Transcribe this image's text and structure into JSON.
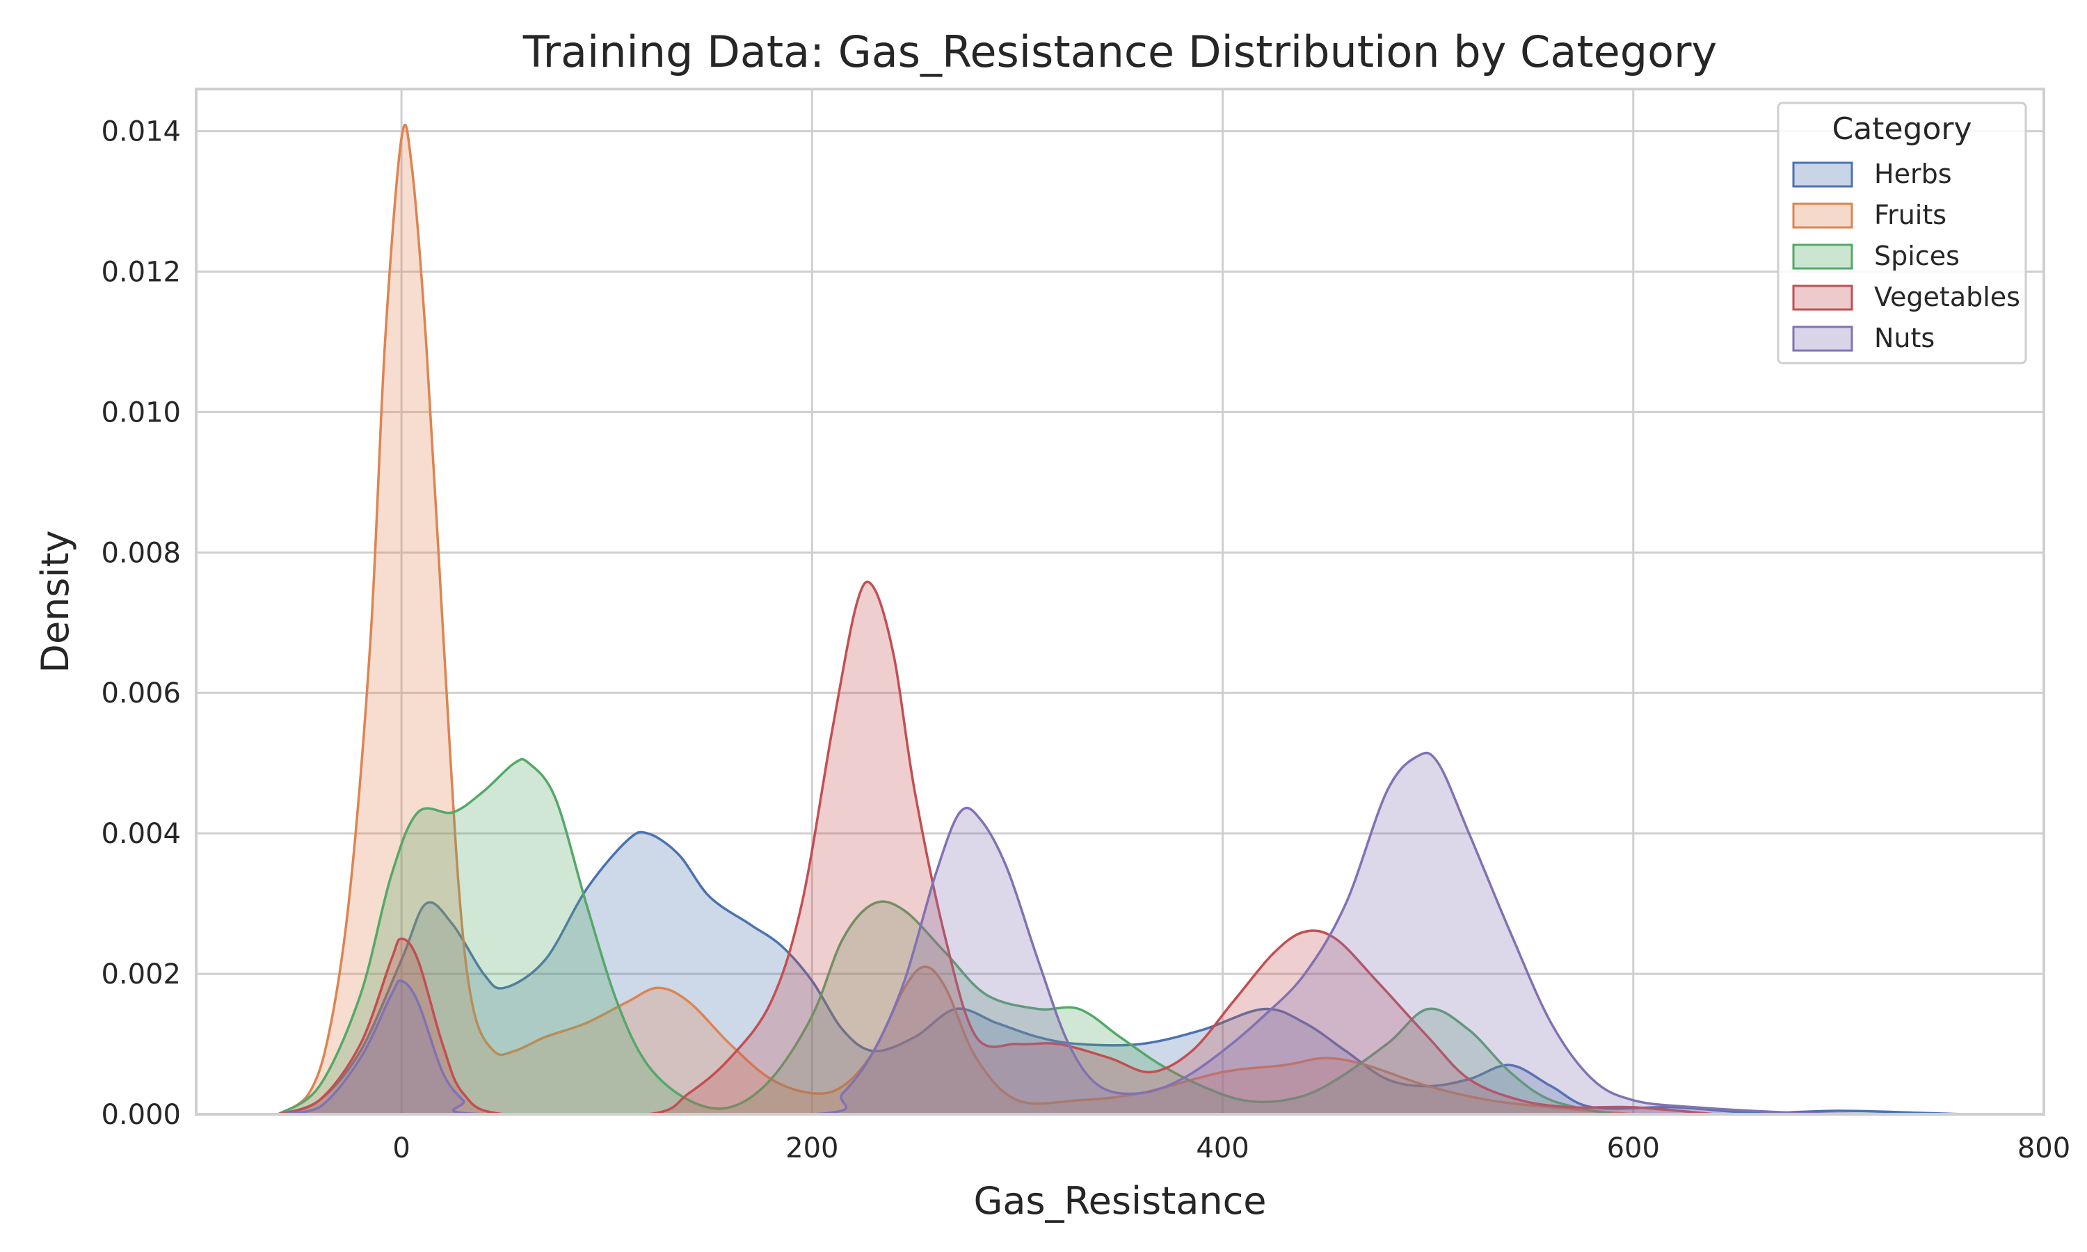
{
  "chart_data": {
    "type": "area",
    "title": "Training Data: Gas_Resistance Distribution by Category",
    "xlabel": "Gas_Resistance",
    "ylabel": "Density",
    "xlim": [
      -100,
      800
    ],
    "ylim": [
      0,
      0.0146
    ],
    "x_ticks": [
      0,
      200,
      400,
      600,
      800
    ],
    "y_ticks": [
      0.0,
      0.002,
      0.004,
      0.006,
      0.008,
      0.01,
      0.012,
      0.014
    ],
    "x_tick_labels": [
      "0",
      "200",
      "400",
      "600",
      "800"
    ],
    "y_tick_labels": [
      "0.000",
      "0.002",
      "0.004",
      "0.006",
      "0.008",
      "0.010",
      "0.012",
      "0.014"
    ],
    "grid": true,
    "legend": {
      "title": "Category",
      "placement": "top-right"
    },
    "series": [
      {
        "name": "Herbs",
        "color": "#4c72b0",
        "points": [
          [
            -60,
            0
          ],
          [
            -40,
            0.0002
          ],
          [
            -20,
            0.0009
          ],
          [
            0,
            0.0022
          ],
          [
            12,
            0.003
          ],
          [
            25,
            0.0027
          ],
          [
            40,
            0.002
          ],
          [
            50,
            0.0018
          ],
          [
            70,
            0.0022
          ],
          [
            90,
            0.0032
          ],
          [
            110,
            0.0039
          ],
          [
            120,
            0.004
          ],
          [
            135,
            0.0037
          ],
          [
            150,
            0.0031
          ],
          [
            170,
            0.0027
          ],
          [
            185,
            0.0024
          ],
          [
            200,
            0.0019
          ],
          [
            215,
            0.0012
          ],
          [
            230,
            0.0009
          ],
          [
            250,
            0.0011
          ],
          [
            270,
            0.0015
          ],
          [
            290,
            0.0013
          ],
          [
            310,
            0.0011
          ],
          [
            330,
            0.001
          ],
          [
            360,
            0.001
          ],
          [
            390,
            0.0012
          ],
          [
            420,
            0.0015
          ],
          [
            440,
            0.0013
          ],
          [
            460,
            0.0009
          ],
          [
            480,
            0.0005
          ],
          [
            500,
            0.0004
          ],
          [
            520,
            0.0005
          ],
          [
            540,
            0.0007
          ],
          [
            560,
            0.0004
          ],
          [
            580,
            0.0001
          ],
          [
            620,
            0.0001
          ],
          [
            660,
            2e-05
          ],
          [
            700,
            5e-05
          ],
          [
            740,
            2e-05
          ],
          [
            760,
            0
          ]
        ]
      },
      {
        "name": "Fruits",
        "color": "#dd8452",
        "points": [
          [
            -60,
            0
          ],
          [
            -45,
            0.0003
          ],
          [
            -35,
            0.0012
          ],
          [
            -25,
            0.0032
          ],
          [
            -15,
            0.0068
          ],
          [
            -8,
            0.011
          ],
          [
            0,
            0.0139
          ],
          [
            5,
            0.0135
          ],
          [
            12,
            0.011
          ],
          [
            20,
            0.007
          ],
          [
            28,
            0.0032
          ],
          [
            35,
            0.0015
          ],
          [
            45,
            0.0009
          ],
          [
            55,
            0.0009
          ],
          [
            70,
            0.0011
          ],
          [
            90,
            0.0013
          ],
          [
            110,
            0.0016
          ],
          [
            125,
            0.0018
          ],
          [
            140,
            0.0016
          ],
          [
            160,
            0.001
          ],
          [
            180,
            0.0005
          ],
          [
            200,
            0.0003
          ],
          [
            215,
            0.0004
          ],
          [
            230,
            0.0009
          ],
          [
            245,
            0.0018
          ],
          [
            255,
            0.0021
          ],
          [
            265,
            0.0018
          ],
          [
            280,
            0.0008
          ],
          [
            300,
            0.0002
          ],
          [
            330,
            0.0002
          ],
          [
            360,
            0.0003
          ],
          [
            400,
            0.0006
          ],
          [
            430,
            0.0007
          ],
          [
            450,
            0.0008
          ],
          [
            470,
            0.0007
          ],
          [
            500,
            0.0004
          ],
          [
            530,
            0.0002
          ],
          [
            560,
            0.0001
          ],
          [
            600,
            0
          ]
        ]
      },
      {
        "name": "Spices",
        "color": "#55a868",
        "points": [
          [
            -60,
            0
          ],
          [
            -40,
            0.0004
          ],
          [
            -20,
            0.0017
          ],
          [
            -5,
            0.0034
          ],
          [
            8,
            0.0043
          ],
          [
            25,
            0.0043
          ],
          [
            40,
            0.0046
          ],
          [
            55,
            0.005
          ],
          [
            62,
            0.005
          ],
          [
            75,
            0.0045
          ],
          [
            90,
            0.003
          ],
          [
            105,
            0.0016
          ],
          [
            120,
            0.0007
          ],
          [
            140,
            0.0002
          ],
          [
            160,
            0.0001
          ],
          [
            180,
            0.0005
          ],
          [
            200,
            0.0014
          ],
          [
            215,
            0.0025
          ],
          [
            230,
            0.003
          ],
          [
            245,
            0.0029
          ],
          [
            265,
            0.0023
          ],
          [
            285,
            0.0017
          ],
          [
            310,
            0.0015
          ],
          [
            330,
            0.0015
          ],
          [
            350,
            0.0011
          ],
          [
            370,
            0.0007
          ],
          [
            390,
            0.0004
          ],
          [
            410,
            0.0002
          ],
          [
            430,
            0.0002
          ],
          [
            450,
            0.0004
          ],
          [
            480,
            0.001
          ],
          [
            500,
            0.0015
          ],
          [
            520,
            0.0012
          ],
          [
            540,
            0.0006
          ],
          [
            560,
            0.0002
          ],
          [
            590,
            0
          ]
        ]
      },
      {
        "name": "Vegetables",
        "color": "#c44e52",
        "points": [
          [
            -60,
            0
          ],
          [
            -40,
            0.0002
          ],
          [
            -20,
            0.001
          ],
          [
            -5,
            0.0022
          ],
          [
            0,
            0.0025
          ],
          [
            8,
            0.0022
          ],
          [
            20,
            0.001
          ],
          [
            30,
            0.0003
          ],
          [
            50,
            0
          ],
          [
            120,
            0
          ],
          [
            140,
            0.0003
          ],
          [
            160,
            0.0008
          ],
          [
            180,
            0.0016
          ],
          [
            195,
            0.003
          ],
          [
            210,
            0.0055
          ],
          [
            222,
            0.0073
          ],
          [
            230,
            0.0075
          ],
          [
            240,
            0.0065
          ],
          [
            250,
            0.0046
          ],
          [
            265,
            0.0025
          ],
          [
            280,
            0.0011
          ],
          [
            300,
            0.001
          ],
          [
            320,
            0.001
          ],
          [
            345,
            0.0008
          ],
          [
            365,
            0.0006
          ],
          [
            385,
            0.0009
          ],
          [
            405,
            0.0016
          ],
          [
            425,
            0.0023
          ],
          [
            440,
            0.0026
          ],
          [
            455,
            0.0025
          ],
          [
            475,
            0.0019
          ],
          [
            500,
            0.0011
          ],
          [
            520,
            0.0005
          ],
          [
            545,
            0.0002
          ],
          [
            570,
            0.0001
          ],
          [
            600,
            0.0001
          ],
          [
            640,
            0
          ]
        ]
      },
      {
        "name": "Nuts",
        "color": "#8172b3",
        "points": [
          [
            -60,
            0
          ],
          [
            -40,
            0.0001
          ],
          [
            -20,
            0.0008
          ],
          [
            -5,
            0.0017
          ],
          [
            0,
            0.0019
          ],
          [
            8,
            0.0016
          ],
          [
            20,
            0.0006
          ],
          [
            30,
            0.0002
          ],
          [
            40,
            0
          ],
          [
            200,
            0
          ],
          [
            215,
            0.0003
          ],
          [
            230,
            0.0009
          ],
          [
            245,
            0.0019
          ],
          [
            260,
            0.0034
          ],
          [
            272,
            0.0043
          ],
          [
            282,
            0.0042
          ],
          [
            295,
            0.0035
          ],
          [
            310,
            0.0022
          ],
          [
            325,
            0.001
          ],
          [
            340,
            0.0004
          ],
          [
            360,
            0.0003
          ],
          [
            380,
            0.0005
          ],
          [
            400,
            0.0009
          ],
          [
            420,
            0.0014
          ],
          [
            440,
            0.002
          ],
          [
            460,
            0.003
          ],
          [
            480,
            0.0046
          ],
          [
            495,
            0.0051
          ],
          [
            505,
            0.005
          ],
          [
            520,
            0.004
          ],
          [
            540,
            0.0026
          ],
          [
            560,
            0.0013
          ],
          [
            580,
            0.0005
          ],
          [
            600,
            0.0002
          ],
          [
            630,
            0.0001
          ],
          [
            680,
            2e-05
          ],
          [
            720,
            0
          ]
        ]
      }
    ]
  }
}
